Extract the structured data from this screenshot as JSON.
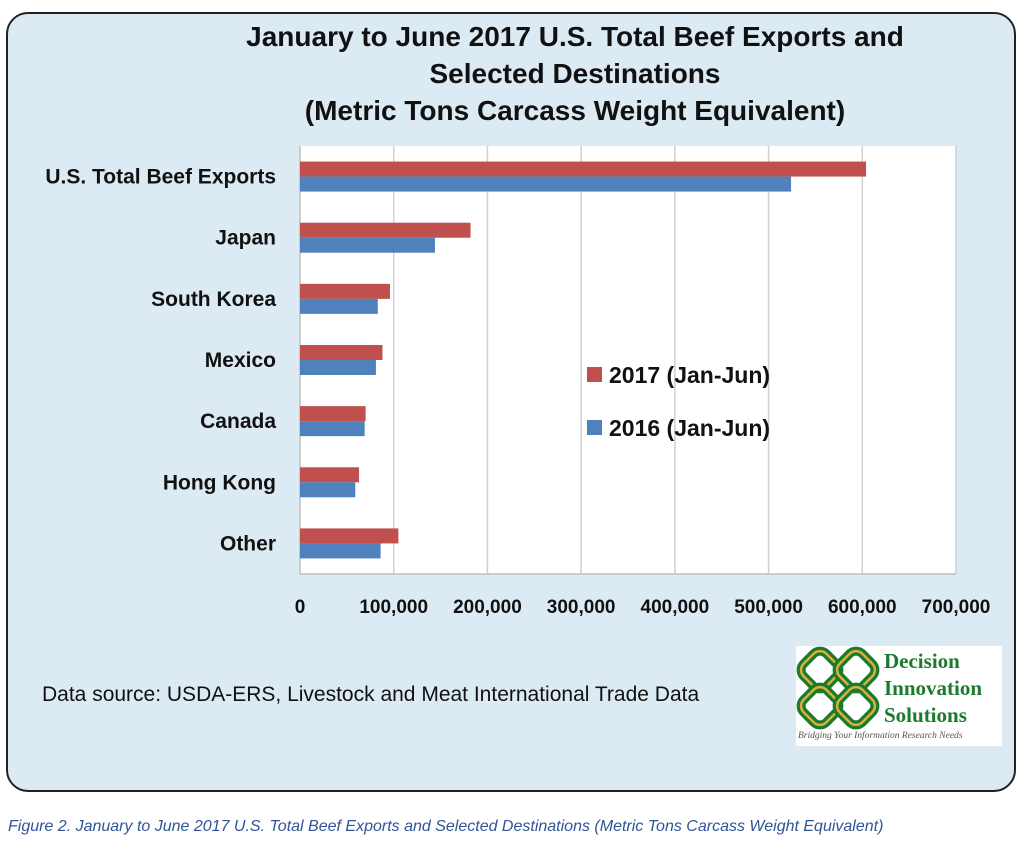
{
  "title_lines": [
    "January to June 2017 U.S. Total Beef Exports and",
    "Selected Destinations",
    "(Metric Tons Carcass Weight Equivalent)"
  ],
  "data_source": "Data source: USDA-ERS, Livestock and Meat International Trade Data",
  "logo": {
    "words": [
      "Decision",
      "Innovation",
      "Solutions"
    ],
    "tagline": "Bridging Your Information Research Needs",
    "colors": {
      "green": "#1c7a2c",
      "gold": "#d8b23a"
    }
  },
  "caption": "Figure 2. January to June 2017 U.S. Total Beef Exports and Selected Destinations (Metric Tons Carcass Weight Equivalent)",
  "chart_data": {
    "type": "bar",
    "orientation": "horizontal",
    "categories": [
      "U.S. Total Beef  Exports",
      "Japan",
      "South Korea",
      "Mexico",
      "Canada",
      "Hong Kong",
      "Other"
    ],
    "series": [
      {
        "name": "2017 (Jan-Jun)",
        "color": "#c0504d",
        "values": [
          604000,
          182000,
          96000,
          88000,
          70000,
          63000,
          105000
        ]
      },
      {
        "name": "2016 (Jan-Jun)",
        "color": "#4f81bd",
        "values": [
          524000,
          144000,
          83000,
          81000,
          69000,
          59000,
          86000
        ]
      }
    ],
    "xlim": [
      0,
      700000
    ],
    "x_ticks": [
      0,
      100000,
      200000,
      300000,
      400000,
      500000,
      600000,
      700000
    ],
    "x_tick_labels": [
      "0",
      "100,000",
      "200,000",
      "300,000",
      "400,000",
      "500,000",
      "600,000",
      "700,000"
    ],
    "grid": "vertical",
    "legend_position": "center-right"
  }
}
